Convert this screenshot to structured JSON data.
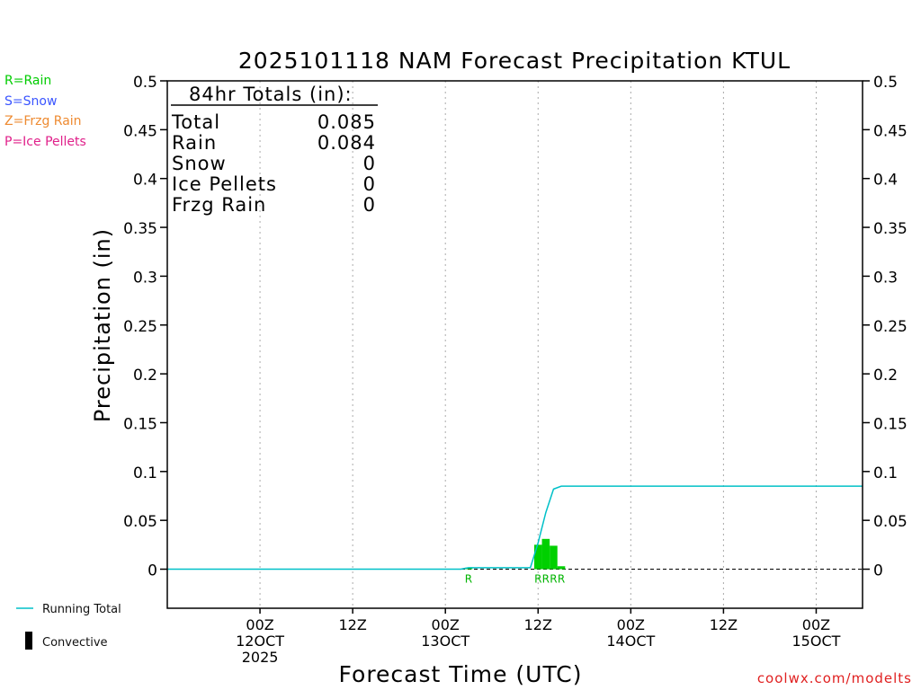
{
  "precip_legend": [
    {
      "label": "R=Rain",
      "color": "#00cc00"
    },
    {
      "label": "S=Snow",
      "color": "#3a55ff"
    },
    {
      "label": "Z=Frzg Rain",
      "color": "#ee8a30"
    },
    {
      "label": "P=Ice Pellets",
      "color": "#e0208a"
    }
  ],
  "series_legend": {
    "running_total": "Running Total",
    "convective": "Convective"
  },
  "credit": "coolwx.com/modelts",
  "totals_box": {
    "heading": "84hr Totals (in):",
    "rows": [
      {
        "label": "Total",
        "value": "0.085"
      },
      {
        "label": "Rain",
        "value": "0.084"
      },
      {
        "label": "Snow",
        "value": "0"
      },
      {
        "label": "Ice Pellets",
        "value": "0"
      },
      {
        "label": "Frzg Rain",
        "value": "0"
      }
    ]
  },
  "chart_data": {
    "type": "bar",
    "title": "2025101118 NAM Forecast Precipitation KTUL",
    "xlabel": "Forecast Time (UTC)",
    "ylabel": "Precipitation (in)",
    "xlim": [
      -6,
      84
    ],
    "ylim": [
      -0.04,
      0.5
    ],
    "yticks": [
      0,
      0.05,
      0.1,
      0.15,
      0.2,
      0.25,
      0.3,
      0.35,
      0.4,
      0.45,
      0.5
    ],
    "yticklabels": [
      "0",
      "0.05",
      "0.1",
      "0.15",
      "0.2",
      "0.25",
      "0.3",
      "0.35",
      "0.4",
      "0.45",
      "0.5"
    ],
    "xticks": [
      {
        "x": 6,
        "labels": [
          "00Z",
          "12OCT",
          "2025"
        ]
      },
      {
        "x": 18,
        "labels": [
          "12Z"
        ]
      },
      {
        "x": 30,
        "labels": [
          "00Z",
          "13OCT"
        ]
      },
      {
        "x": 42,
        "labels": [
          "12Z"
        ]
      },
      {
        "x": 54,
        "labels": [
          "00Z",
          "14OCT"
        ]
      },
      {
        "x": 66,
        "labels": [
          "12Z"
        ]
      },
      {
        "x": 78,
        "labels": [
          "00Z",
          "15OCT"
        ]
      }
    ],
    "grid_vertical": true,
    "bars": [
      {
        "x": 33,
        "value": 0.0015,
        "type": "R"
      },
      {
        "x": 42,
        "value": 0.025,
        "type": "R"
      },
      {
        "x": 43,
        "value": 0.031,
        "type": "R"
      },
      {
        "x": 44,
        "value": 0.024,
        "type": "R"
      },
      {
        "x": 45,
        "value": 0.003,
        "type": "R"
      }
    ],
    "running_total": {
      "name": "Running Total",
      "x": [
        -6,
        32,
        33,
        41,
        42,
        43,
        44,
        45,
        48,
        84
      ],
      "y": [
        0,
        0,
        0.0015,
        0.0015,
        0.027,
        0.058,
        0.082,
        0.085,
        0.085,
        0.085
      ]
    }
  }
}
